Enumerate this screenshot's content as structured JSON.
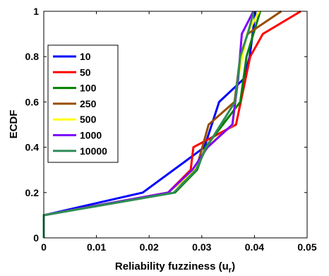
{
  "chart_data": {
    "type": "line",
    "title": "",
    "xlabel": "Reliability fuzziness (u",
    "xlabel_sub": "r",
    "xlabel_close": ")",
    "ylabel": "ECDF",
    "xlim": [
      0,
      0.05
    ],
    "ylim": [
      0,
      1
    ],
    "x_ticks": [
      0,
      0.01,
      0.02,
      0.03,
      0.04,
      0.05
    ],
    "x_tick_labels": [
      "0",
      "0.01",
      "0.02",
      "0.03",
      "0.04",
      "0.05"
    ],
    "y_ticks": [
      0,
      0.2,
      0.4,
      0.6,
      0.8,
      1
    ],
    "y_tick_labels": [
      "0",
      "0.2",
      "0.4",
      "0.6",
      "0.8",
      "1"
    ],
    "grid": false,
    "legend_position": "left",
    "series": [
      {
        "name": "10",
        "color": "#0000ff",
        "x": [
          0,
          0,
          0.0188,
          0.0305,
          0.0333,
          0.0379,
          0.0391,
          0.0402
        ],
        "y": [
          0,
          0.1,
          0.2,
          0.4,
          0.6,
          0.7,
          0.8,
          1.0
        ]
      },
      {
        "name": "50",
        "color": "#ff0000",
        "x": [
          0,
          0,
          0.0236,
          0.0279,
          0.0284,
          0.0365,
          0.0383,
          0.0392,
          0.0416,
          0.0488
        ],
        "y": [
          0,
          0.1,
          0.2,
          0.3,
          0.4,
          0.5,
          0.7,
          0.8,
          0.9,
          1.0
        ]
      },
      {
        "name": "100",
        "color": "#008000",
        "x": [
          0,
          0,
          0.0249,
          0.0291,
          0.0307,
          0.0373,
          0.0385,
          0.0398,
          0.0411
        ],
        "y": [
          0,
          0.1,
          0.2,
          0.3,
          0.4,
          0.6,
          0.8,
          0.9,
          1.0
        ]
      },
      {
        "name": "250",
        "color": "#994c00",
        "x": [
          0,
          0,
          0.0236,
          0.0289,
          0.0313,
          0.0362,
          0.0373,
          0.0387,
          0.0451
        ],
        "y": [
          0,
          0.1,
          0.2,
          0.3,
          0.5,
          0.6,
          0.8,
          0.9,
          1.0
        ]
      },
      {
        "name": "500",
        "color": "#ffff00",
        "x": [
          0,
          0,
          0.0236,
          0.0287,
          0.0309,
          0.0359,
          0.0368,
          0.0386,
          0.0409
        ],
        "y": [
          0,
          0.1,
          0.2,
          0.3,
          0.4,
          0.5,
          0.7,
          0.9,
          1.0
        ]
      },
      {
        "name": "1000",
        "color": "#7f00ff",
        "x": [
          0,
          0,
          0.0236,
          0.0282,
          0.0311,
          0.0358,
          0.0369,
          0.0376,
          0.0398
        ],
        "y": [
          0,
          0.1,
          0.2,
          0.3,
          0.4,
          0.5,
          0.7,
          0.9,
          1.0
        ]
      },
      {
        "name": "10000",
        "color": "#2e8b57",
        "x": [
          0,
          0,
          0.0247,
          0.0289,
          0.0309,
          0.0363,
          0.0373,
          0.0387,
          0.0399
        ],
        "y": [
          0,
          0.1,
          0.2,
          0.3,
          0.4,
          0.6,
          0.8,
          0.9,
          1.0
        ]
      }
    ]
  }
}
